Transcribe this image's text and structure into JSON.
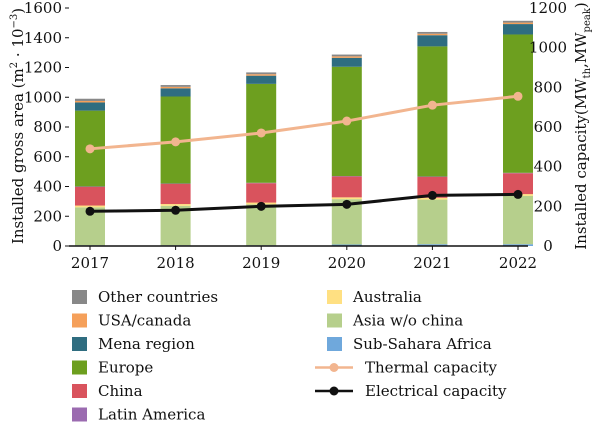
{
  "chart_data": {
    "type": "bar",
    "categories": [
      "2017",
      "2018",
      "2019",
      "2020",
      "2021",
      "2022"
    ],
    "ylabel": "Installed gross area (m² · 10⁻³)",
    "ylabel_main": "Installed gross area (m",
    "ylabel_sup1": "2",
    "ylabel_mid": " · 10",
    "ylabel_sup2": "−3",
    "ylabel_end": ")",
    "y2label": "Installed capacity(MW_th, MW_peak)",
    "y2label_main": "Installed capacity(MW",
    "y2label_sub1": "th",
    "y2label_mid": ",MW",
    "y2label_sub2": "peak",
    "y2label_end": ")",
    "ylim": [
      0,
      1600
    ],
    "y2lim": [
      0,
      1200
    ],
    "yticks": [
      "0",
      "200",
      "400",
      "600",
      "800",
      "1000",
      "1200",
      "1400",
      "1600"
    ],
    "y2ticks": [
      "0",
      "200",
      "400",
      "600",
      "800",
      "1000",
      "1200"
    ],
    "legend_position": "bottom",
    "series": [
      {
        "name": "Sub-Sahara Africa",
        "color": "#6fa8dc",
        "values": [
          5,
          5,
          5,
          10,
          12,
          12
        ]
      },
      {
        "name": "Asia w/o china",
        "color": "#b6cf8c",
        "values": [
          255,
          265,
          275,
          305,
          300,
          325
        ]
      },
      {
        "name": "Australia",
        "color": "#ffe082",
        "values": [
          12,
          12,
          12,
          12,
          12,
          12
        ]
      },
      {
        "name": "China",
        "color": "#d9535d",
        "values": [
          125,
          135,
          130,
          140,
          140,
          140
        ]
      },
      {
        "name": "Latin America",
        "color": "#9b6bb0",
        "values": [
          3,
          3,
          3,
          3,
          3,
          3
        ]
      },
      {
        "name": "Europe",
        "color": "#6d9f1f",
        "values": [
          510,
          585,
          665,
          735,
          875,
          930
        ]
      },
      {
        "name": "Mena region",
        "color": "#2f6d80",
        "values": [
          55,
          55,
          55,
          60,
          75,
          70
        ]
      },
      {
        "name": "USA/canada",
        "color": "#f5a05a",
        "values": [
          10,
          10,
          10,
          10,
          10,
          10
        ]
      },
      {
        "name": "Other countries",
        "color": "#888888",
        "values": [
          15,
          12,
          12,
          12,
          12,
          12
        ]
      }
    ],
    "line_series": [
      {
        "name": "Thermal capacity",
        "color": "#f2b58f",
        "axis": "right",
        "values": [
          490,
          525,
          570,
          630,
          710,
          755
        ]
      },
      {
        "name": "Electrical capacity",
        "color": "#111111",
        "axis": "right",
        "values": [
          175,
          180,
          200,
          210,
          255,
          260
        ]
      }
    ],
    "legend_col1": [
      {
        "name": "Other countries",
        "color": "#888888",
        "kind": "box"
      },
      {
        "name": "USA/canada",
        "color": "#f5a05a",
        "kind": "box"
      },
      {
        "name": "Mena region",
        "color": "#2f6d80",
        "kind": "box"
      },
      {
        "name": "Europe",
        "color": "#6d9f1f",
        "kind": "box"
      },
      {
        "name": "China",
        "color": "#d9535d",
        "kind": "box"
      },
      {
        "name": "Latin America",
        "color": "#9b6bb0",
        "kind": "box"
      }
    ],
    "legend_col2": [
      {
        "name": "Australia",
        "color": "#ffe082",
        "kind": "box"
      },
      {
        "name": "Asia w/o china",
        "color": "#b6cf8c",
        "kind": "box"
      },
      {
        "name": "Sub-Sahara Africa",
        "color": "#6fa8dc",
        "kind": "box"
      },
      {
        "name": "Thermal capacity",
        "color": "#f2b58f",
        "kind": "line"
      },
      {
        "name": "Electrical capacity",
        "color": "#111111",
        "kind": "line"
      }
    ]
  }
}
